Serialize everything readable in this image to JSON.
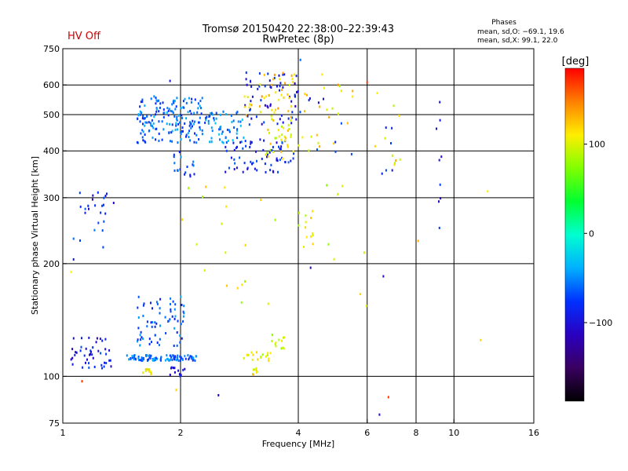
{
  "header": {
    "title_line1": "Tromsø 20150420 22:38:00–22:39:43",
    "title_line2": "RwPretec (8p)",
    "status": "HV Off",
    "status_color": "#cc0000",
    "stats_title": "Phases",
    "stats_line1": "mean, sd,O: −69.1, 19.6",
    "stats_line2": "mean, sd,X:  99.1, 22.0"
  },
  "colorbar": {
    "unit": "[deg]",
    "colormap": "rainbow",
    "ticks": [
      {
        "value": 100,
        "label": "100"
      },
      {
        "value": 0,
        "label": "0"
      },
      {
        "value": -100,
        "label": "−100"
      }
    ]
  },
  "chart_data": {
    "type": "scatter",
    "title": "Tromsø 20150420 22:38:00–22:39:43",
    "subtitle": "RwPretec (8p)",
    "xlabel": "Frequency [MHz]",
    "ylabel": "Stationary phase Virtual Height [km]",
    "xscale": "log",
    "yscale": "log",
    "xlim": [
      1,
      16
    ],
    "ylim": [
      75,
      750
    ],
    "xticks": [
      {
        "value": 1,
        "label": "1"
      },
      {
        "value": 2,
        "label": "2"
      },
      {
        "value": 4,
        "label": "4"
      },
      {
        "value": 6,
        "label": "6"
      },
      {
        "value": 8,
        "label": "8"
      },
      {
        "value": 10,
        "label": "10"
      },
      {
        "value": 16,
        "label": "16"
      }
    ],
    "yticks": [
      {
        "value": 75,
        "label": "75"
      },
      {
        "value": 100,
        "label": "100"
      },
      {
        "value": 200,
        "label": "200"
      },
      {
        "value": 300,
        "label": "300"
      },
      {
        "value": 400,
        "label": "400"
      },
      {
        "value": 500,
        "label": "500"
      },
      {
        "value": 600,
        "label": "600"
      },
      {
        "value": 750,
        "label": "750"
      }
    ],
    "grid_x": [
      2,
      4,
      6,
      8,
      10
    ],
    "grid_y": [
      100,
      200,
      300,
      400,
      500,
      600
    ],
    "color_variable": "phase [deg]",
    "clusters": [
      {
        "fmin": 1.05,
        "fmax": 1.33,
        "hmin": 105,
        "hmax": 127,
        "phase": -90,
        "count": 45
      },
      {
        "fmin": 1.45,
        "fmax": 2.2,
        "hmin": 110,
        "hmax": 114,
        "phase": -60,
        "count": 95
      },
      {
        "fmin": 1.55,
        "fmax": 2.05,
        "hmin": 120,
        "hmax": 165,
        "phase": -65,
        "count": 70
      },
      {
        "fmin": 1.6,
        "fmax": 1.7,
        "hmin": 101,
        "hmax": 105,
        "phase": 110,
        "count": 10
      },
      {
        "fmin": 1.85,
        "fmax": 2.05,
        "hmin": 100,
        "hmax": 106,
        "phase": -100,
        "count": 12
      },
      {
        "fmin": 2.9,
        "fmax": 3.4,
        "hmin": 110,
        "hmax": 116,
        "phase": 95,
        "count": 18
      },
      {
        "fmin": 3.4,
        "fmax": 3.7,
        "hmin": 118,
        "hmax": 130,
        "phase": 90,
        "count": 12
      },
      {
        "fmin": 3.05,
        "fmax": 3.15,
        "hmin": 101,
        "hmax": 106,
        "phase": 100,
        "count": 8
      },
      {
        "fmin": 1.55,
        "fmax": 2.3,
        "hmin": 420,
        "hmax": 560,
        "phase": -60,
        "count": 170
      },
      {
        "fmin": 2.3,
        "fmax": 2.9,
        "hmin": 420,
        "hmax": 510,
        "phase": -50,
        "count": 60
      },
      {
        "fmin": 2.6,
        "fmax": 3.9,
        "hmin": 350,
        "hmax": 430,
        "phase": -85,
        "count": 70
      },
      {
        "fmin": 2.9,
        "fmax": 4.0,
        "hmin": 470,
        "hmax": 650,
        "phase": -90,
        "count": 60
      },
      {
        "fmin": 2.9,
        "fmax": 4.0,
        "hmin": 480,
        "hmax": 650,
        "phase": 120,
        "count": 45
      },
      {
        "fmin": 3.3,
        "fmax": 3.9,
        "hmin": 380,
        "hmax": 470,
        "phase": 105,
        "count": 30
      },
      {
        "fmin": 1.9,
        "fmax": 2.2,
        "hmin": 340,
        "hmax": 400,
        "phase": -70,
        "count": 18
      },
      {
        "fmin": 1.1,
        "fmax": 1.35,
        "hmin": 270,
        "hmax": 310,
        "phase": -85,
        "count": 18
      },
      {
        "fmin": 1.05,
        "fmax": 1.35,
        "hmin": 205,
        "hmax": 260,
        "phase": -80,
        "count": 8
      },
      {
        "fmin": 4.0,
        "fmax": 5.6,
        "hmin": 400,
        "hmax": 600,
        "phase": 110,
        "count": 22
      },
      {
        "fmin": 4.0,
        "fmax": 5.6,
        "hmin": 390,
        "hmax": 560,
        "phase": -85,
        "count": 10
      },
      {
        "fmin": 4.0,
        "fmax": 4.4,
        "hmin": 220,
        "hmax": 280,
        "phase": 110,
        "count": 10
      },
      {
        "fmin": 6.2,
        "fmax": 7.3,
        "hmin": 360,
        "hmax": 580,
        "phase": 110,
        "count": 10
      },
      {
        "fmin": 6.5,
        "fmax": 7.1,
        "hmin": 340,
        "hmax": 480,
        "phase": -95,
        "count": 6
      },
      {
        "fmin": 9.0,
        "fmax": 9.3,
        "hmin": 240,
        "hmax": 540,
        "phase": -95,
        "count": 8
      },
      {
        "fmin": 2.0,
        "fmax": 6.0,
        "hmin": 140,
        "hmax": 330,
        "phase": 100,
        "count": 30
      }
    ],
    "points": [
      {
        "f": 1.12,
        "h": 97,
        "phase": 170
      },
      {
        "f": 1.05,
        "h": 190,
        "phase": 110
      },
      {
        "f": 6.8,
        "h": 88,
        "phase": 170
      },
      {
        "f": 6.45,
        "h": 79,
        "phase": -100
      },
      {
        "f": 2.5,
        "h": 89,
        "phase": -110
      },
      {
        "f": 1.95,
        "h": 92,
        "phase": 120
      },
      {
        "f": 12.2,
        "h": 312,
        "phase": 110
      },
      {
        "f": 11.7,
        "h": 125,
        "phase": 120
      },
      {
        "f": 8.1,
        "h": 230,
        "phase": 130
      },
      {
        "f": 6.6,
        "h": 185,
        "phase": -100
      },
      {
        "f": 4.3,
        "h": 195,
        "phase": -110
      },
      {
        "f": 5.05,
        "h": 600,
        "phase": 140
      },
      {
        "f": 6.0,
        "h": 610,
        "phase": 170
      },
      {
        "f": 9.2,
        "h": 540,
        "phase": -100
      },
      {
        "f": 1.88,
        "h": 615,
        "phase": -100
      },
      {
        "f": 4.05,
        "h": 700,
        "phase": -60
      },
      {
        "f": 4.6,
        "h": 640,
        "phase": 110
      }
    ]
  }
}
